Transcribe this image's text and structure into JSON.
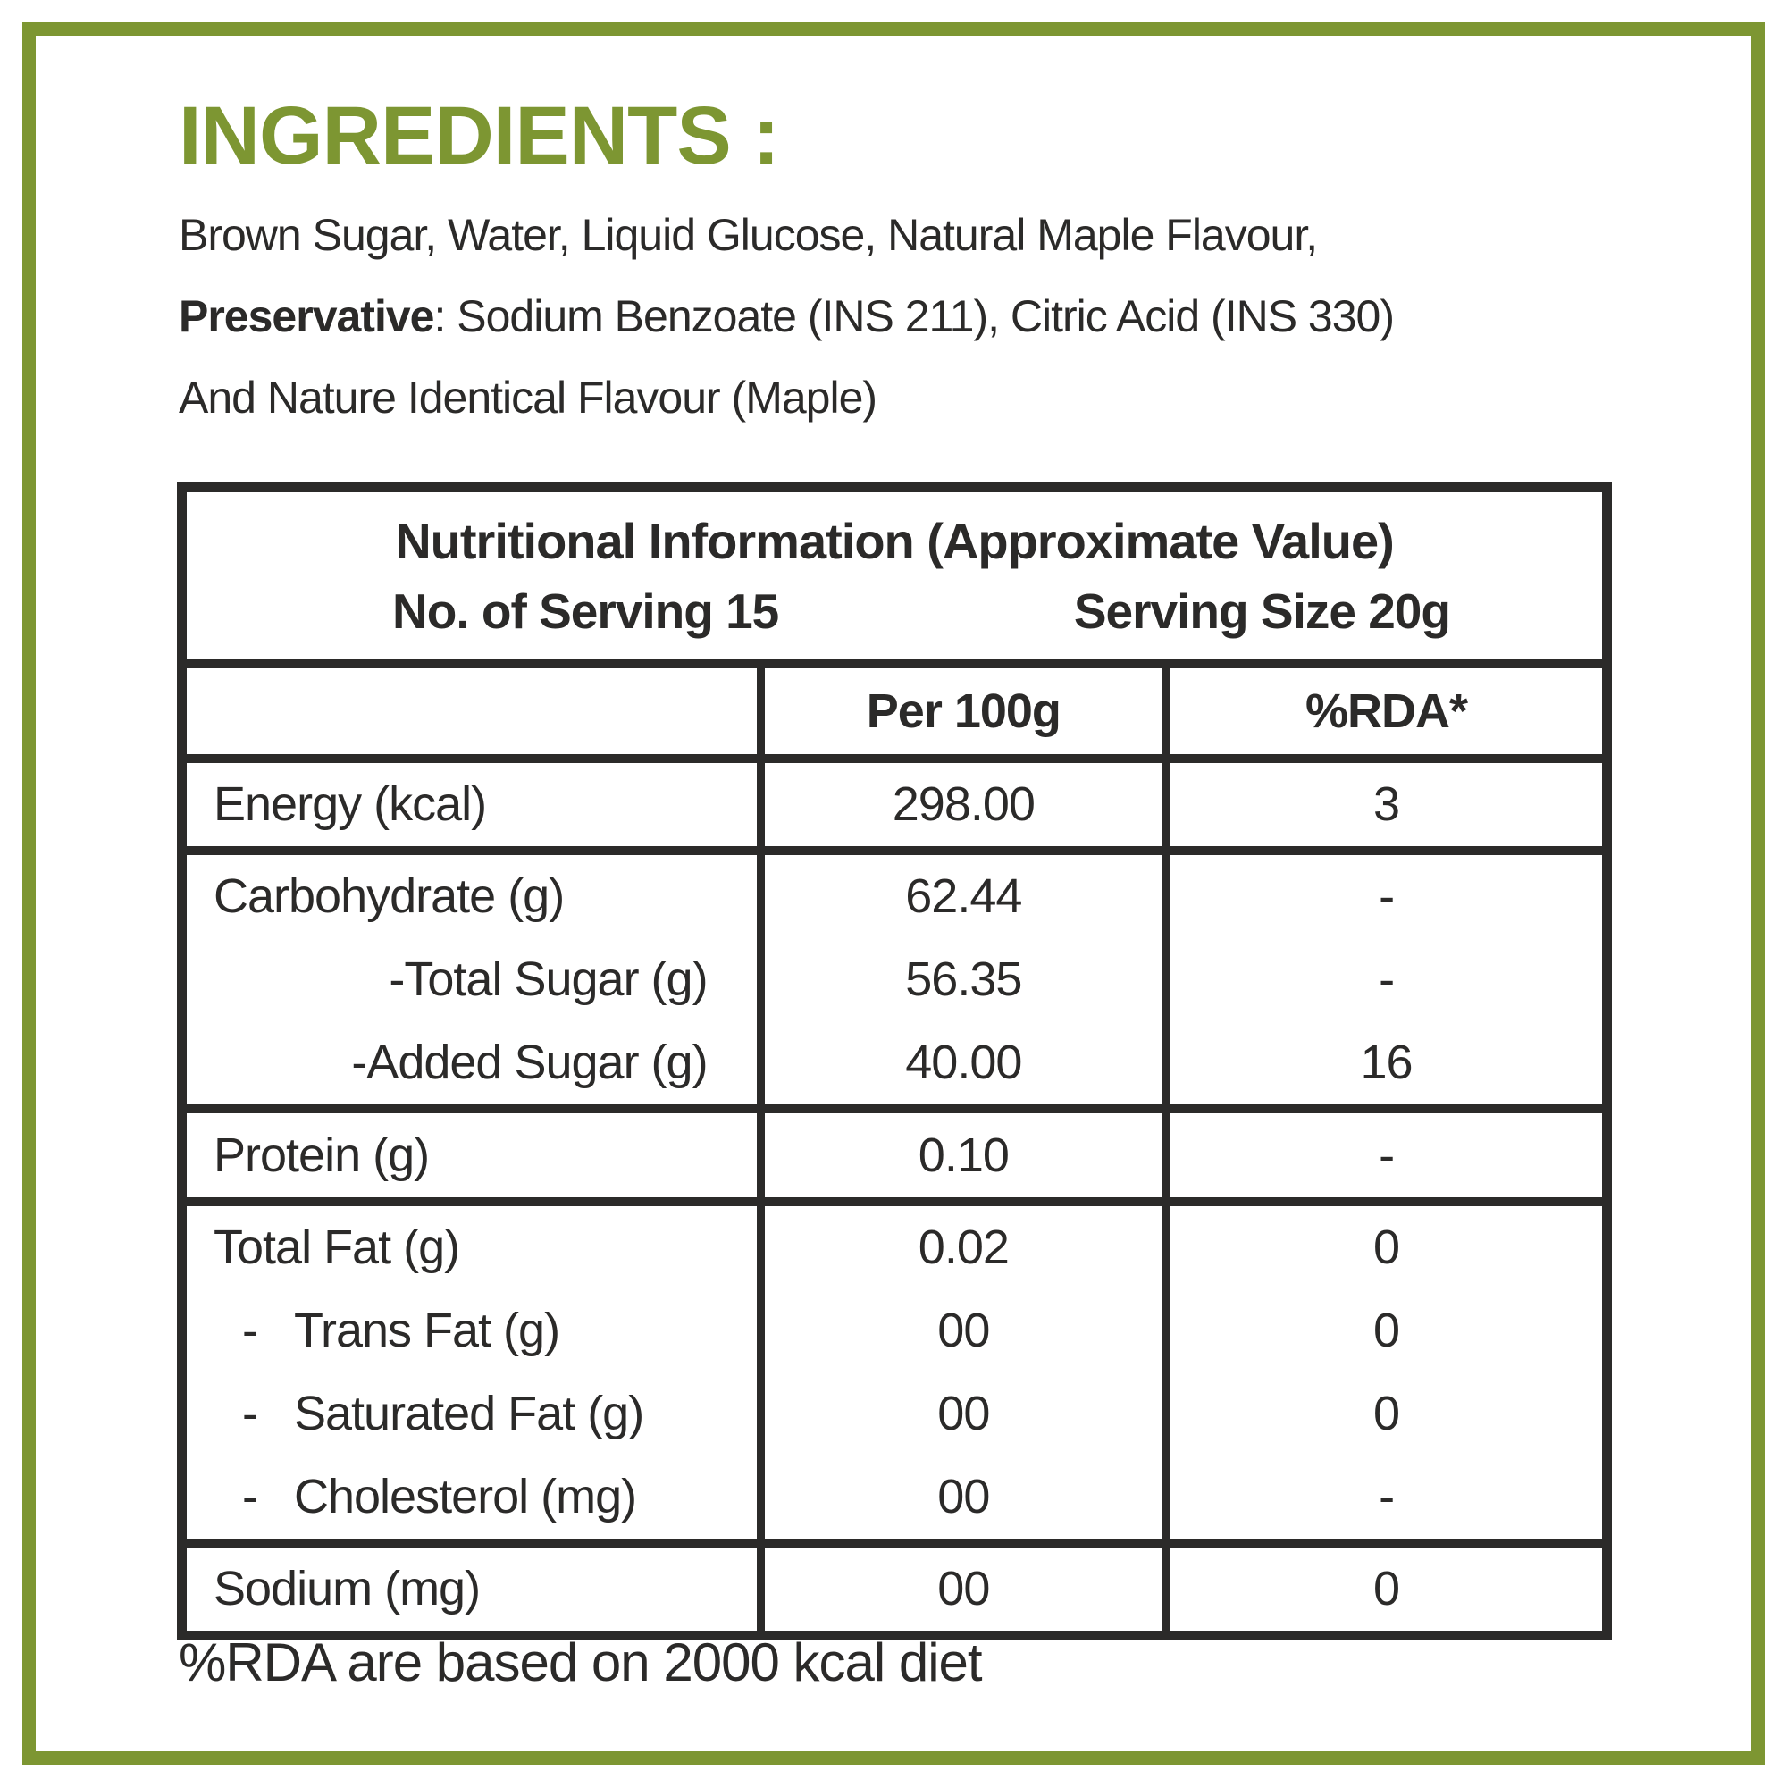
{
  "colors": {
    "accent_green": "#7d9632",
    "ink": "#2b2a29"
  },
  "ingredients": {
    "heading": "INGREDIENTS :",
    "line1": "Brown Sugar, Water, Liquid Glucose, Natural Maple Flavour,",
    "line2_bold": "Preservative",
    "line2_rest": ": Sodium Benzoate (INS 211), Citric Acid (INS 330)",
    "line3": "And Nature Identical Flavour (Maple)"
  },
  "table": {
    "title": "Nutritional Information (Approximate Value)",
    "servings_label": "No. of Serving 15",
    "serving_size_label": "Serving Size 20g",
    "col2_header": "Per 100g",
    "col3_header": "%RDA*",
    "sections": [
      {
        "lines": [
          {
            "label": "Energy (kcal)",
            "indent": "none",
            "per100g": "298.00",
            "rda": "3"
          }
        ]
      },
      {
        "lines": [
          {
            "label": "Carbohydrate (g)",
            "indent": "none",
            "per100g": "62.44",
            "rda": "-"
          },
          {
            "label": "-Total Sugar (g)",
            "indent": "right",
            "per100g": "56.35",
            "rda": "-"
          },
          {
            "label": "-Added Sugar (g)",
            "indent": "right",
            "per100g": "40.00",
            "rda": "16"
          }
        ]
      },
      {
        "lines": [
          {
            "label": "Protein (g)",
            "indent": "none",
            "per100g": "0.10",
            "rda": "-"
          }
        ]
      },
      {
        "lines": [
          {
            "label": "Total Fat (g)",
            "indent": "none",
            "per100g": "0.02",
            "rda": "0"
          },
          {
            "label": "Trans Fat (g)",
            "indent": "dash",
            "bullet": "-",
            "per100g": "00",
            "rda": "0"
          },
          {
            "label": "Saturated Fat (g)",
            "indent": "dash",
            "bullet": "-",
            "per100g": "00",
            "rda": "0"
          },
          {
            "label": "Cholesterol (mg)",
            "indent": "dash",
            "bullet": "-",
            "per100g": "00",
            "rda": "-"
          }
        ]
      },
      {
        "lines": [
          {
            "label": "Sodium (mg)",
            "indent": "none",
            "per100g": "00",
            "rda": "0"
          }
        ]
      }
    ]
  },
  "footer": {
    "note": "%RDA are based on 2000 kcal diet"
  }
}
